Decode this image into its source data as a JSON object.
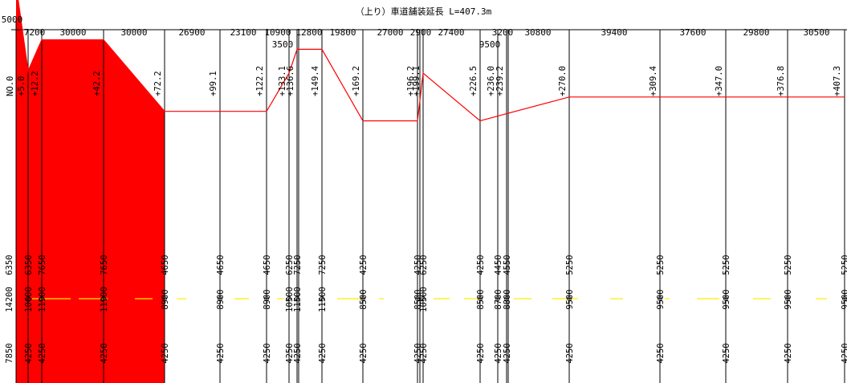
{
  "title": "（上り）車道舗装延長 L=407.3m",
  "colors": {
    "paved_fill": "#ff0000",
    "outline": "#ff0000",
    "center_dash": "#ffee00",
    "line": "#000000"
  },
  "stations": [
    {
      "label": "NO.0",
      "top": 6350,
      "mid": 14200,
      "bottom": 7850
    },
    {
      "label": "+5.0",
      "top": 6350,
      "mid": 10600,
      "bottom": 4250
    },
    {
      "label": "+12.2",
      "top": 7650,
      "mid": 11900,
      "bottom": 4250
    },
    {
      "label": "+42.2",
      "top": 7650,
      "mid": 11900,
      "bottom": 4250
    },
    {
      "label": "+72.2",
      "top": 4650,
      "mid": 8900,
      "bottom": 4250
    },
    {
      "label": "+99.1",
      "top": 4650,
      "mid": 8900,
      "bottom": 4250
    },
    {
      "label": "+122.2",
      "top": 4650,
      "mid": 8900,
      "bottom": 4250
    },
    {
      "label": "+133.1",
      "top": 6250,
      "mid": 10500,
      "bottom": 4250
    },
    {
      "label": "+136.6",
      "top": 7250,
      "mid": 11500,
      "bottom": 4250
    },
    {
      "label": "+149.4",
      "top": 7250,
      "mid": 11500,
      "bottom": 4250
    },
    {
      "label": "+169.2",
      "top": 4250,
      "mid": 8500,
      "bottom": 4250
    },
    {
      "label": "+196.2",
      "top": 4250,
      "mid": 8500,
      "bottom": 4250
    },
    {
      "label": "+199.1",
      "top": 6250,
      "mid": 10500,
      "bottom": 4250
    },
    {
      "label": "+226.5",
      "top": 4250,
      "mid": 8500,
      "bottom": 4250
    },
    {
      "label": "+236.0",
      "top": 4450,
      "mid": 8700,
      "bottom": 4250
    },
    {
      "label": "+239.2",
      "top": 4550,
      "mid": 8800,
      "bottom": 4250
    },
    {
      "label": "+270.0",
      "top": 5250,
      "mid": 9500,
      "bottom": 4250
    },
    {
      "label": "+309.4",
      "top": 5250,
      "mid": 9500,
      "bottom": 4250
    },
    {
      "label": "+347.0",
      "top": 5250,
      "mid": 9500,
      "bottom": 4250
    },
    {
      "label": "+376.8",
      "top": 5250,
      "mid": 9500,
      "bottom": 4250
    },
    {
      "label": "+407.3",
      "top": 5250,
      "mid": 9500,
      "bottom": 4250
    }
  ],
  "spacings": [
    "5000",
    "7200",
    "30000",
    "30000",
    "26900",
    "23100",
    "10900",
    "3500",
    "12800",
    "19800",
    "27000",
    "2900",
    "27400",
    "9500",
    "3200",
    "30800",
    "39400",
    "37600",
    "29800",
    "30500"
  ]
}
